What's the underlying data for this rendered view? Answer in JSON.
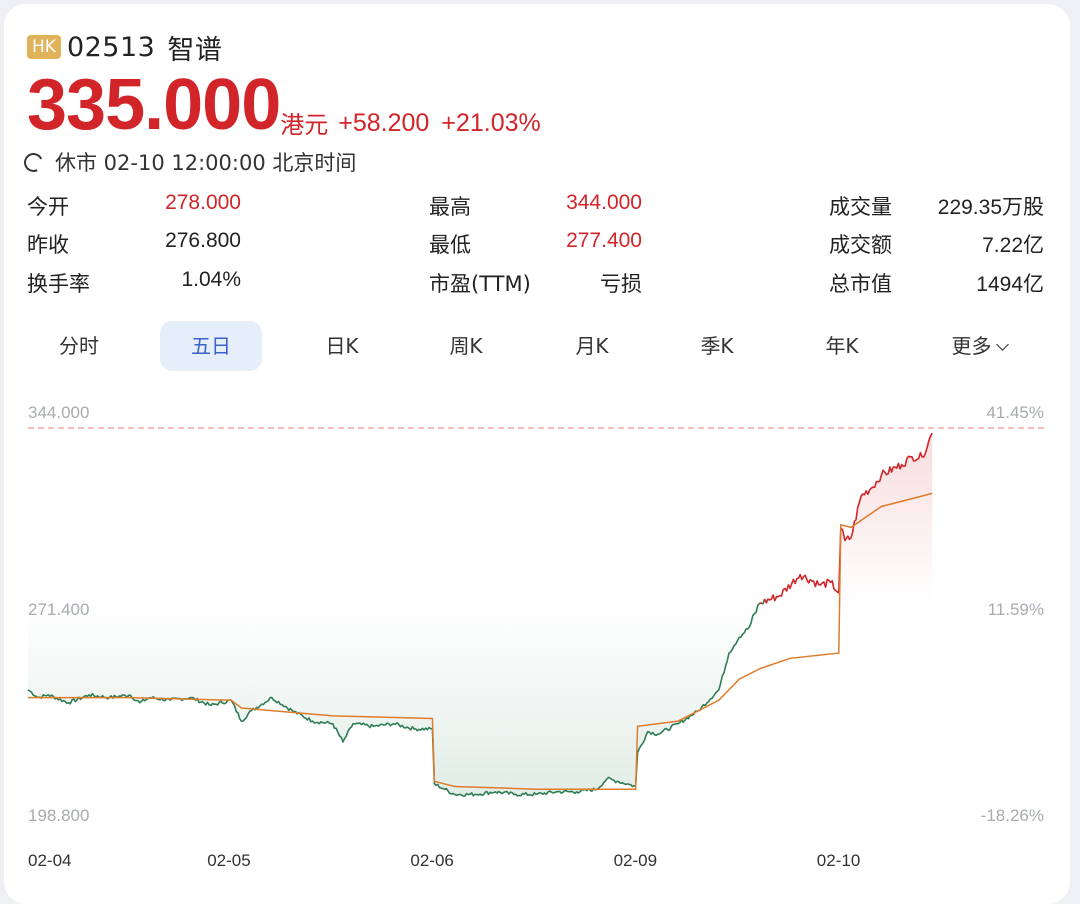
{
  "header": {
    "market_badge": "HK",
    "code": "02513",
    "name": "智谱",
    "price": "335.000",
    "price_unit": "港元",
    "change": "+58.200",
    "change_pct": "+21.03%",
    "status": "休市 02-10 12:00:00 北京时间"
  },
  "stats": [
    {
      "label": "今开",
      "value": "278.000",
      "color": "red"
    },
    {
      "label": "最高",
      "value": "344.000",
      "color": "red"
    },
    {
      "label": "成交量",
      "value": "229.35万股",
      "color": "normal"
    },
    {
      "label": "昨收",
      "value": "276.800",
      "color": "normal"
    },
    {
      "label": "最低",
      "value": "277.400",
      "color": "red"
    },
    {
      "label": "成交额",
      "value": "7.22亿",
      "color": "normal"
    },
    {
      "label": "换手率",
      "value": "1.04%",
      "color": "normal"
    },
    {
      "label": "市盈(TTM)",
      "value": "亏损",
      "color": "normal"
    },
    {
      "label": "总市值",
      "value": "1494亿",
      "color": "normal"
    }
  ],
  "tabs": [
    {
      "label": "分时",
      "active": false
    },
    {
      "label": "五日",
      "active": true
    },
    {
      "label": "日K",
      "active": false
    },
    {
      "label": "周K",
      "active": false
    },
    {
      "label": "月K",
      "active": false
    },
    {
      "label": "季K",
      "active": false
    },
    {
      "label": "年K",
      "active": false
    },
    {
      "label": "更多",
      "active": false
    }
  ],
  "colors": {
    "up": "#d1252a",
    "down": "#2e7d55",
    "avg": "#e07b2a",
    "axis": "#a8abb2"
  },
  "chart_data": {
    "type": "line",
    "y_left_ticks": [
      "344.000",
      "271.400",
      "198.800"
    ],
    "y_right_ticks": [
      "41.45%",
      "11.59%",
      "-18.26%"
    ],
    "ylim": [
      198.8,
      344.0
    ],
    "prev_close": 276.8,
    "reference_line": 344.0,
    "x_labels": [
      "02-04",
      "02-05",
      "02-06",
      "02-09",
      "02-10"
    ],
    "price_series": {
      "name": "",
      "x": [
        0,
        0.05,
        0.1,
        0.2,
        0.3,
        0.4,
        0.5,
        0.55,
        0.6,
        0.7,
        0.8,
        0.9,
        1.0,
        1.05,
        1.1,
        1.2,
        1.3,
        1.4,
        1.5,
        1.55,
        1.6,
        1.7,
        1.8,
        1.9,
        1.99,
        2.0,
        2.05,
        2.1,
        2.2,
        2.3,
        2.4,
        2.5,
        2.6,
        2.7,
        2.8,
        2.85,
        2.9,
        2.95,
        2.99,
        3.0,
        3.05,
        3.1,
        3.2,
        3.3,
        3.4,
        3.45,
        3.5,
        3.55,
        3.6,
        3.7,
        3.8,
        3.9,
        3.95,
        3.99,
        4.0,
        4.02,
        4.05,
        4.1,
        4.15,
        4.2,
        4.3,
        4.35,
        4.4,
        4.45
      ],
      "values": [
        244,
        241,
        242,
        239,
        242,
        241,
        242,
        239,
        241,
        240,
        241,
        238,
        240,
        232,
        236,
        241,
        236,
        232,
        231,
        224,
        231,
        230,
        231,
        229,
        229,
        208,
        206,
        204,
        204,
        205,
        204,
        204,
        205,
        205,
        206,
        210,
        209,
        208,
        207,
        220,
        228,
        227,
        231,
        236,
        244,
        258,
        264,
        268,
        277,
        280,
        288,
        284,
        285,
        281,
        306,
        301,
        302,
        318,
        321,
        326,
        330,
        333,
        333,
        342
      ]
    },
    "avg_series": {
      "name": "",
      "x": [
        0,
        0.5,
        1.0,
        1.05,
        1.5,
        1.99,
        2.0,
        2.1,
        2.5,
        2.99,
        3.0,
        3.2,
        3.4,
        3.5,
        3.6,
        3.75,
        3.99,
        4.0,
        4.05,
        4.2,
        4.45
      ],
      "values": [
        241,
        241,
        240,
        237,
        234,
        233,
        209,
        207,
        206,
        206,
        230,
        232,
        240,
        248,
        252,
        256,
        258,
        307,
        306,
        314,
        319
      ]
    }
  }
}
